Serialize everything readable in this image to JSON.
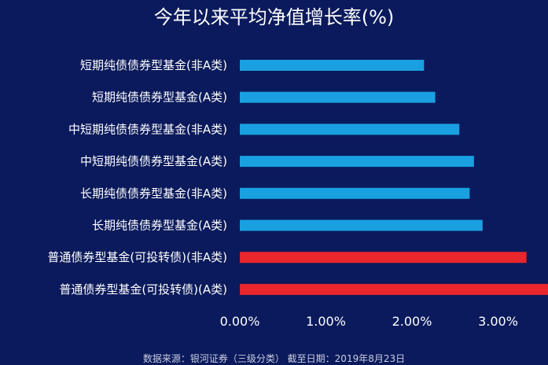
{
  "chart_data": {
    "type": "bar",
    "orientation": "horizontal",
    "title": "今年以来平均净值增长率(%)",
    "categories": [
      "短期纯债债券型基金(非A类)",
      "短期纯债债券型基金(A类)",
      "中短期纯债债券型基金(非A类)",
      "中短期纯债债券型基金(A类)",
      "长期纯债债券型基金(非A类)",
      "长期纯债债券型基金(A类)",
      "普通债券型基金(可投转债)(非A类)",
      "普通债券型基金(可投转债)(A类)"
    ],
    "values": [
      2.14,
      2.27,
      2.55,
      2.72,
      2.67,
      2.82,
      3.33,
      3.65
    ],
    "bar_colors": [
      "#1aa0e0",
      "#1aa0e0",
      "#1aa0e0",
      "#1aa0e0",
      "#1aa0e0",
      "#1aa0e0",
      "#e8262b",
      "#e8262b"
    ],
    "x_ticks": [
      "0.00%",
      "1.00%",
      "2.00%",
      "3.00%"
    ],
    "xlim": [
      0,
      3.6
    ],
    "grid": false,
    "source_note": "数据来源：银河证券（三级分类） 截至日期：2019年8月23日"
  }
}
